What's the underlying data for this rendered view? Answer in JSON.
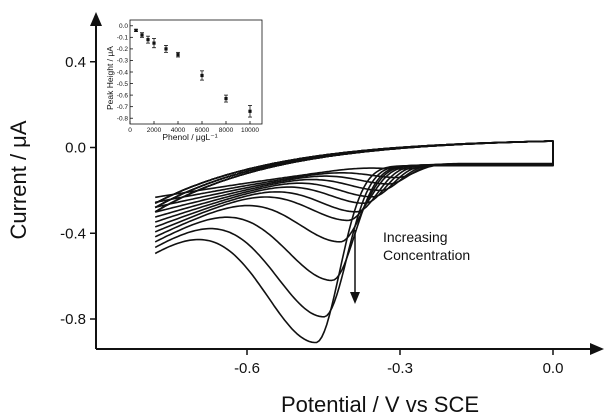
{
  "chart_data": [
    {
      "type": "line",
      "xlabel": "Potential / V vs SCE",
      "ylabel": "Current / μA",
      "xlim": [
        -0.78,
        0.05
      ],
      "ylim": [
        -0.97,
        0.63
      ],
      "xticks": [
        {
          "v": -0.6,
          "label": "-0.6"
        },
        {
          "v": -0.3,
          "label": "-0.3"
        },
        {
          "v": 0.0,
          "label": "0.0"
        }
      ],
      "yticks": [
        {
          "v": 0.4,
          "label": "0.4"
        },
        {
          "v": 0.0,
          "label": "0.0"
        },
        {
          "v": -0.4,
          "label": "-0.4"
        },
        {
          "v": -0.8,
          "label": "-0.8"
        }
      ],
      "annotation": [
        "Increasing",
        "Concentration"
      ],
      "series_peaks": [
        -0.1,
        -0.14,
        -0.17,
        -0.2,
        -0.23,
        -0.26,
        -0.3,
        -0.34,
        -0.44,
        -0.62,
        -0.79,
        -0.91
      ]
    },
    {
      "type": "scatter",
      "xlabel": "Phenol / μgL⁻¹",
      "ylabel": "Peak Height / μA",
      "xlim": [
        0,
        11000
      ],
      "ylim": [
        -0.85,
        0.05
      ],
      "xticks": [
        {
          "v": 0,
          "label": "0"
        },
        {
          "v": 2000,
          "label": "2000"
        },
        {
          "v": 4000,
          "label": "4000"
        },
        {
          "v": 6000,
          "label": "6000"
        },
        {
          "v": 8000,
          "label": "8000"
        },
        {
          "v": 10000,
          "label": "10000"
        }
      ],
      "yticks": [
        {
          "v": 0.0,
          "label": "0.0"
        },
        {
          "v": -0.1,
          "label": "-0.1"
        },
        {
          "v": -0.2,
          "label": "-0.2"
        },
        {
          "v": -0.3,
          "label": "-0.3"
        },
        {
          "v": -0.4,
          "label": "-0.4"
        },
        {
          "v": -0.5,
          "label": "-0.5"
        },
        {
          "v": -0.6,
          "label": "-0.6"
        },
        {
          "v": -0.7,
          "label": "-0.7"
        },
        {
          "v": -0.8,
          "label": "-0.8"
        }
      ],
      "points": [
        {
          "x": 500,
          "y": -0.04,
          "err": 0.01
        },
        {
          "x": 1000,
          "y": -0.08,
          "err": 0.02
        },
        {
          "x": 1500,
          "y": -0.12,
          "err": 0.03
        },
        {
          "x": 2000,
          "y": -0.15,
          "err": 0.04
        },
        {
          "x": 3000,
          "y": -0.2,
          "err": 0.03
        },
        {
          "x": 4000,
          "y": -0.25,
          "err": 0.02
        },
        {
          "x": 6000,
          "y": -0.43,
          "err": 0.04
        },
        {
          "x": 8000,
          "y": -0.63,
          "err": 0.03
        },
        {
          "x": 10000,
          "y": -0.74,
          "err": 0.05
        }
      ]
    }
  ]
}
